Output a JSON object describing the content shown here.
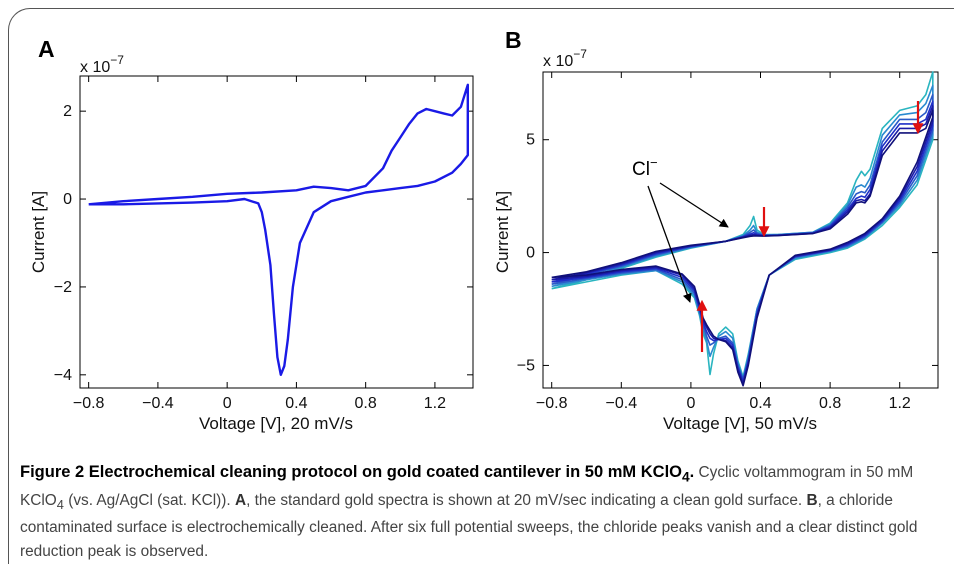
{
  "figure": {
    "panel_a_label": "A",
    "panel_b_label": "B",
    "annotation_cl": "Cl",
    "annotation_cl_sup": "−"
  },
  "caption": {
    "title_part1": "Figure 2 Electrochemical cleaning protocol on gold coated cantilever in 50 mM KClO",
    "title_sub": "4",
    "title_end": ".",
    "body_1": " Cyclic voltammogram in 50 mM KClO",
    "body_sub": "4",
    "body_2": " (vs. Ag/AgCl (sat. KCl)). ",
    "label_a": "A",
    "body_3": ", the standard gold spectra is shown at 20 mV/sec indicating a clean gold surface. ",
    "label_b": "B",
    "body_4": ", a chloride contaminated surface is electrochemically cleaned. After six full potential sweeps, the chloride peaks vanish and a clear distinct gold reduction peak is observed."
  },
  "colors": {
    "trace_a": "#1a1ae6",
    "traces_b": [
      "#2ab5c0",
      "#2a8ad0",
      "#2a5ac8",
      "#1f2fc8",
      "#1a1aa6",
      "#10107a"
    ],
    "arrow_red": "#e01010"
  },
  "chart_data": [
    {
      "type": "line",
      "panel": "A",
      "xlabel": "Voltage [V], 20 mV/s",
      "ylabel": "Current [A]",
      "y_scale_label": "x 10",
      "y_scale_exp": "−7",
      "xlim": [
        -0.85,
        1.42
      ],
      "ylim": [
        -4.3,
        2.8
      ],
      "xticks": [
        -0.8,
        -0.4,
        0,
        0.4,
        0.8,
        1.2
      ],
      "xtick_labels": [
        "−0.8",
        "−0.4",
        "0",
        "0.4",
        "0.8",
        "1.2"
      ],
      "yticks": [
        -4,
        -2,
        0,
        2
      ],
      "ytick_labels": [
        "−4",
        "−2",
        "0",
        "2"
      ],
      "grid": false,
      "series": [
        {
          "x": [
            -0.8,
            -0.6,
            -0.4,
            -0.2,
            0.0,
            0.2,
            0.4,
            0.5,
            0.6,
            0.7,
            0.8,
            0.9,
            0.95,
            1.0,
            1.05,
            1.1,
            1.15,
            1.2,
            1.25,
            1.3,
            1.35,
            1.39,
            1.39,
            1.35,
            1.3,
            1.2,
            1.1,
            1.0,
            0.9,
            0.8,
            0.7,
            0.6,
            0.5,
            0.42,
            0.38,
            0.35,
            0.33,
            0.31,
            0.29,
            0.27,
            0.25,
            0.22,
            0.2,
            0.18,
            0.1,
            0.0,
            -0.2,
            -0.4,
            -0.6,
            -0.8
          ],
          "y": [
            -0.12,
            -0.05,
            0.0,
            0.05,
            0.12,
            0.15,
            0.2,
            0.28,
            0.25,
            0.2,
            0.3,
            0.7,
            1.1,
            1.4,
            1.7,
            1.95,
            2.05,
            2.0,
            1.95,
            1.9,
            2.1,
            2.6,
            1.0,
            0.8,
            0.6,
            0.4,
            0.3,
            0.25,
            0.2,
            0.15,
            0.05,
            -0.05,
            -0.3,
            -1.0,
            -2.0,
            -3.2,
            -3.8,
            -4.0,
            -3.6,
            -2.6,
            -1.5,
            -0.7,
            -0.3,
            -0.1,
            0.0,
            -0.05,
            -0.08,
            -0.1,
            -0.12,
            -0.12
          ]
        }
      ]
    },
    {
      "type": "line",
      "panel": "B",
      "xlabel": "Voltage [V], 50 mV/s",
      "ylabel": "Current [A]",
      "y_scale_label": "x 10",
      "y_scale_exp": "−7",
      "xlim": [
        -0.85,
        1.42
      ],
      "ylim": [
        -6.0,
        8.0
      ],
      "xticks": [
        -0.8,
        -0.4,
        0,
        0.4,
        0.8,
        1.2
      ],
      "xtick_labels": [
        "−0.8",
        "−0.4",
        "0",
        "0.4",
        "0.8",
        "1.2"
      ],
      "yticks": [
        -5,
        0,
        5
      ],
      "ytick_labels": [
        "−5",
        "0",
        "5"
      ],
      "grid": false,
      "series": [
        {
          "x": [
            -0.8,
            -0.6,
            -0.4,
            -0.2,
            0.0,
            0.2,
            0.3,
            0.34,
            0.36,
            0.38,
            0.42,
            0.5,
            0.7,
            0.8,
            0.9,
            0.95,
            0.98,
            1.0,
            1.03,
            1.1,
            1.2,
            1.3,
            1.35,
            1.39,
            1.39,
            1.3,
            1.2,
            1.1,
            1.0,
            0.9,
            0.8,
            0.6,
            0.45,
            0.38,
            0.33,
            0.3,
            0.27,
            0.24,
            0.2,
            0.16,
            0.13,
            0.11,
            0.09,
            0.07,
            0.05,
            0.02,
            -0.05,
            -0.2,
            -0.4,
            -0.6,
            -0.8
          ],
          "y": [
            -1.6,
            -1.2,
            -0.7,
            -0.2,
            0.2,
            0.5,
            0.8,
            1.2,
            1.6,
            1.0,
            0.8,
            0.8,
            0.9,
            1.3,
            2.2,
            3.2,
            3.6,
            3.4,
            3.7,
            5.5,
            6.3,
            6.5,
            7.0,
            8.0,
            5.0,
            3.0,
            2.0,
            1.2,
            0.6,
            0.2,
            0.0,
            -0.3,
            -1.0,
            -2.5,
            -4.5,
            -5.5,
            -4.8,
            -3.6,
            -3.3,
            -3.6,
            -4.5,
            -5.4,
            -4.0,
            -3.6,
            -2.8,
            -2.0,
            -1.4,
            -0.8,
            -1.0,
            -1.3,
            -1.6
          ]
        },
        {
          "x": [
            -0.8,
            -0.6,
            -0.4,
            -0.2,
            0.0,
            0.2,
            0.3,
            0.34,
            0.36,
            0.38,
            0.42,
            0.5,
            0.7,
            0.8,
            0.9,
            0.95,
            0.98,
            1.0,
            1.03,
            1.1,
            1.2,
            1.3,
            1.35,
            1.39,
            1.39,
            1.3,
            1.2,
            1.1,
            1.0,
            0.9,
            0.8,
            0.6,
            0.45,
            0.38,
            0.33,
            0.3,
            0.27,
            0.24,
            0.2,
            0.16,
            0.13,
            0.11,
            0.09,
            0.07,
            0.05,
            0.02,
            -0.05,
            -0.2,
            -0.4,
            -0.6,
            -0.8
          ],
          "y": [
            -1.5,
            -1.1,
            -0.65,
            -0.15,
            0.22,
            0.5,
            0.75,
            1.0,
            1.2,
            0.9,
            0.78,
            0.8,
            0.9,
            1.25,
            2.1,
            2.9,
            3.0,
            2.9,
            3.3,
            5.2,
            6.1,
            6.2,
            6.6,
            7.4,
            5.2,
            3.2,
            2.1,
            1.3,
            0.65,
            0.25,
            0.05,
            -0.25,
            -1.0,
            -2.5,
            -4.6,
            -5.6,
            -4.9,
            -3.8,
            -3.5,
            -3.7,
            -4.2,
            -4.6,
            -3.9,
            -3.4,
            -2.7,
            -1.9,
            -1.3,
            -0.8,
            -0.95,
            -1.2,
            -1.5
          ]
        },
        {
          "x": [
            -0.8,
            -0.6,
            -0.4,
            -0.2,
            0.0,
            0.2,
            0.3,
            0.34,
            0.36,
            0.38,
            0.42,
            0.5,
            0.7,
            0.8,
            0.9,
            0.95,
            0.98,
            1.0,
            1.03,
            1.1,
            1.2,
            1.3,
            1.35,
            1.39,
            1.39,
            1.3,
            1.2,
            1.1,
            1.0,
            0.9,
            0.8,
            0.6,
            0.45,
            0.38,
            0.33,
            0.3,
            0.27,
            0.24,
            0.2,
            0.16,
            0.13,
            0.11,
            0.09,
            0.07,
            0.05,
            0.02,
            -0.05,
            -0.2,
            -0.4,
            -0.6,
            -0.8
          ],
          "y": [
            -1.4,
            -1.0,
            -0.6,
            -0.1,
            0.25,
            0.5,
            0.72,
            0.9,
            1.0,
            0.85,
            0.76,
            0.78,
            0.88,
            1.2,
            2.0,
            2.6,
            2.7,
            2.65,
            3.0,
            4.9,
            5.9,
            5.9,
            6.2,
            7.0,
            5.4,
            3.4,
            2.2,
            1.35,
            0.7,
            0.3,
            0.08,
            -0.2,
            -1.0,
            -2.6,
            -4.7,
            -5.6,
            -5.0,
            -4.0,
            -3.7,
            -3.8,
            -4.0,
            -4.1,
            -3.7,
            -3.2,
            -2.6,
            -1.8,
            -1.2,
            -0.75,
            -0.9,
            -1.15,
            -1.4
          ]
        },
        {
          "x": [
            -0.8,
            -0.6,
            -0.4,
            -0.2,
            0.0,
            0.2,
            0.3,
            0.34,
            0.36,
            0.38,
            0.42,
            0.5,
            0.7,
            0.8,
            0.9,
            0.95,
            0.98,
            1.0,
            1.03,
            1.1,
            1.2,
            1.3,
            1.35,
            1.39,
            1.39,
            1.3,
            1.2,
            1.1,
            1.0,
            0.9,
            0.8,
            0.6,
            0.45,
            0.38,
            0.33,
            0.3,
            0.27,
            0.24,
            0.2,
            0.16,
            0.13,
            0.11,
            0.09,
            0.07,
            0.05,
            0.02,
            -0.05,
            -0.2,
            -0.4,
            -0.6,
            -0.8
          ],
          "y": [
            -1.3,
            -0.95,
            -0.55,
            -0.05,
            0.28,
            0.5,
            0.7,
            0.82,
            0.88,
            0.8,
            0.75,
            0.77,
            0.86,
            1.15,
            1.9,
            2.4,
            2.5,
            2.45,
            2.8,
            4.7,
            5.7,
            5.7,
            5.9,
            6.7,
            5.6,
            3.6,
            2.3,
            1.4,
            0.75,
            0.35,
            0.1,
            -0.18,
            -1.0,
            -2.7,
            -4.8,
            -5.7,
            -5.1,
            -4.1,
            -3.8,
            -3.85,
            -3.9,
            -3.8,
            -3.5,
            -3.1,
            -2.5,
            -1.7,
            -1.1,
            -0.7,
            -0.85,
            -1.1,
            -1.3
          ]
        },
        {
          "x": [
            -0.8,
            -0.6,
            -0.4,
            -0.2,
            0.0,
            0.2,
            0.3,
            0.34,
            0.36,
            0.38,
            0.42,
            0.5,
            0.7,
            0.8,
            0.9,
            0.95,
            0.98,
            1.0,
            1.03,
            1.1,
            1.2,
            1.3,
            1.35,
            1.39,
            1.39,
            1.3,
            1.2,
            1.1,
            1.0,
            0.9,
            0.8,
            0.6,
            0.45,
            0.38,
            0.33,
            0.3,
            0.27,
            0.24,
            0.2,
            0.16,
            0.13,
            0.11,
            0.09,
            0.07,
            0.05,
            0.02,
            -0.05,
            -0.2,
            -0.4,
            -0.6,
            -0.8
          ],
          "y": [
            -1.2,
            -0.9,
            -0.5,
            0.0,
            0.3,
            0.5,
            0.68,
            0.76,
            0.8,
            0.77,
            0.74,
            0.76,
            0.85,
            1.1,
            1.8,
            2.3,
            2.35,
            2.3,
            2.6,
            4.5,
            5.5,
            5.5,
            5.7,
            6.5,
            5.8,
            3.8,
            2.4,
            1.45,
            0.8,
            0.4,
            0.12,
            -0.15,
            -1.0,
            -2.8,
            -4.9,
            -5.8,
            -5.2,
            -4.2,
            -3.9,
            -3.85,
            -3.8,
            -3.6,
            -3.3,
            -3.0,
            -2.4,
            -1.6,
            -1.0,
            -0.65,
            -0.8,
            -1.05,
            -1.2
          ]
        },
        {
          "x": [
            -0.8,
            -0.6,
            -0.4,
            -0.2,
            0.0,
            0.2,
            0.3,
            0.34,
            0.36,
            0.38,
            0.42,
            0.5,
            0.7,
            0.8,
            0.9,
            0.95,
            0.98,
            1.0,
            1.03,
            1.1,
            1.2,
            1.3,
            1.35,
            1.39,
            1.39,
            1.3,
            1.2,
            1.1,
            1.0,
            0.9,
            0.8,
            0.6,
            0.45,
            0.38,
            0.33,
            0.3,
            0.27,
            0.24,
            0.2,
            0.16,
            0.13,
            0.11,
            0.09,
            0.07,
            0.05,
            0.02,
            -0.05,
            -0.2,
            -0.4,
            -0.6,
            -0.8
          ],
          "y": [
            -1.1,
            -0.85,
            -0.45,
            0.05,
            0.32,
            0.5,
            0.66,
            0.72,
            0.74,
            0.74,
            0.73,
            0.75,
            0.84,
            1.05,
            1.7,
            2.2,
            2.25,
            2.2,
            2.5,
            4.3,
            5.3,
            5.3,
            5.5,
            6.3,
            6.0,
            4.0,
            2.5,
            1.5,
            0.85,
            0.45,
            0.15,
            -0.12,
            -1.0,
            -2.9,
            -5.0,
            -5.9,
            -5.3,
            -4.3,
            -3.95,
            -3.85,
            -3.7,
            -3.45,
            -3.2,
            -2.9,
            -2.3,
            -1.5,
            -0.95,
            -0.6,
            -0.75,
            -1.0,
            -1.1
          ]
        }
      ]
    }
  ]
}
